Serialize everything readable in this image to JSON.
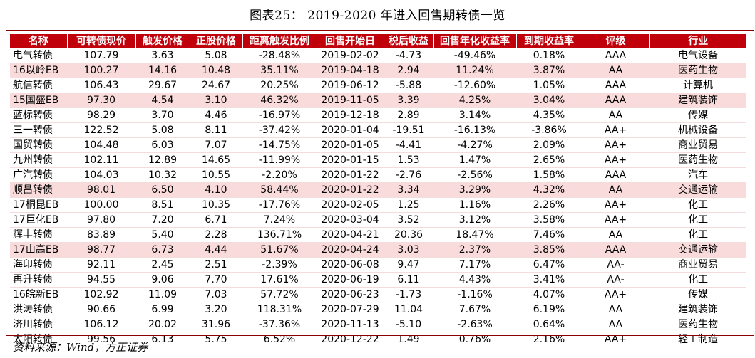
{
  "title": "图表25：  2019-2020 年进入回售期转债一览",
  "source": "资料来源：Wind，方正证券",
  "table": {
    "headers": [
      "名称",
      "可转债现价",
      "触发价格",
      "正股价格",
      "距离触发比例",
      "回售开始日",
      "税后收益",
      "回售年化收益率",
      "到期收益率",
      "评级",
      "行业"
    ],
    "rows": [
      {
        "highlight": false,
        "cells": [
          "电气转债",
          "107.79",
          "3.63",
          "5.08",
          "-28.48%",
          "2019-02-02",
          "-4.73",
          "-49.46%",
          "0.18%",
          "AAA",
          "电气设备"
        ]
      },
      {
        "highlight": true,
        "cells": [
          "16以岭EB",
          "100.27",
          "14.16",
          "10.48",
          "35.11%",
          "2019-04-18",
          "2.94",
          "11.24%",
          "3.87%",
          "AA",
          "医药生物"
        ]
      },
      {
        "highlight": false,
        "cells": [
          "航信转债",
          "106.43",
          "29.67",
          "24.67",
          "20.25%",
          "2019-06-12",
          "-5.88",
          "-12.60%",
          "1.05%",
          "AAA",
          "计算机"
        ]
      },
      {
        "highlight": true,
        "cells": [
          "15国盛EB",
          "97.30",
          "4.54",
          "3.10",
          "46.32%",
          "2019-11-05",
          "3.39",
          "4.25%",
          "3.04%",
          "AAA",
          "建筑装饰"
        ]
      },
      {
        "highlight": false,
        "cells": [
          "蓝标转债",
          "98.29",
          "3.70",
          "4.46",
          "-16.97%",
          "2019-12-18",
          "2.89",
          "3.14%",
          "4.35%",
          "AA",
          "传媒"
        ]
      },
      {
        "highlight": false,
        "cells": [
          "三一转债",
          "122.52",
          "5.08",
          "8.11",
          "-37.42%",
          "2020-01-04",
          "-19.51",
          "-16.13%",
          "-3.86%",
          "AA+",
          "机械设备"
        ]
      },
      {
        "highlight": false,
        "cells": [
          "国贸转债",
          "104.48",
          "6.03",
          "7.07",
          "-14.75%",
          "2020-01-05",
          "-4.41",
          "-4.27%",
          "2.09%",
          "AA+",
          "商业贸易"
        ]
      },
      {
        "highlight": false,
        "cells": [
          "九州转债",
          "102.11",
          "12.89",
          "14.65",
          "-11.99%",
          "2020-01-15",
          "1.53",
          "1.47%",
          "2.65%",
          "AA+",
          "医药生物"
        ]
      },
      {
        "highlight": false,
        "cells": [
          "广汽转债",
          "104.03",
          "10.32",
          "10.55",
          "-2.20%",
          "2020-01-22",
          "-2.76",
          "-2.56%",
          "1.58%",
          "AAA",
          "汽车"
        ]
      },
      {
        "highlight": true,
        "cells": [
          "顺昌转债",
          "98.01",
          "6.50",
          "4.10",
          "58.44%",
          "2020-01-22",
          "3.34",
          "3.29%",
          "4.32%",
          "AA",
          "交通运输"
        ]
      },
      {
        "highlight": false,
        "cells": [
          "17桐昆EB",
          "100.00",
          "8.51",
          "10.35",
          "-17.76%",
          "2020-02-05",
          "1.25",
          "1.16%",
          "2.26%",
          "AA+",
          "化工"
        ]
      },
      {
        "highlight": false,
        "cells": [
          "17巨化EB",
          "97.80",
          "7.20",
          "6.71",
          "7.24%",
          "2020-03-04",
          "3.52",
          "3.12%",
          "3.58%",
          "AA+",
          "化工"
        ]
      },
      {
        "highlight": false,
        "cells": [
          "辉丰转债",
          "83.89",
          "5.40",
          "2.28",
          "136.71%",
          "2020-04-21",
          "20.36",
          "18.47%",
          "7.46%",
          "AA",
          "化工"
        ]
      },
      {
        "highlight": true,
        "cells": [
          "17山高EB",
          "98.77",
          "6.73",
          "4.44",
          "51.67%",
          "2020-04-24",
          "3.03",
          "2.37%",
          "3.85%",
          "AAA",
          "交通运输"
        ]
      },
      {
        "highlight": false,
        "cells": [
          "海印转债",
          "92.11",
          "2.45",
          "2.51",
          "-2.39%",
          "2020-06-08",
          "9.47",
          "7.17%",
          "6.47%",
          "AA-",
          "商业贸易"
        ]
      },
      {
        "highlight": false,
        "cells": [
          "再升转债",
          "94.55",
          "9.06",
          "7.70",
          "17.61%",
          "2020-06-19",
          "6.11",
          "4.43%",
          "3.41%",
          "AA-",
          "化工"
        ]
      },
      {
        "highlight": false,
        "cells": [
          "16皖新EB",
          "102.92",
          "11.09",
          "7.03",
          "57.72%",
          "2020-06-23",
          "-1.73",
          "-1.16%",
          "4.07%",
          "AA+",
          "传媒"
        ]
      },
      {
        "highlight": false,
        "cells": [
          "洪涛转债",
          "90.66",
          "6.99",
          "3.20",
          "118.31%",
          "2020-07-29",
          "11.04",
          "7.67%",
          "6.19%",
          "AA",
          "建筑装饰"
        ]
      },
      {
        "highlight": false,
        "cells": [
          "济川转债",
          "106.12",
          "20.02",
          "31.96",
          "-37.36%",
          "2020-11-13",
          "-5.10",
          "-2.63%",
          "0.64%",
          "AA",
          "医药生物"
        ]
      },
      {
        "highlight": false,
        "cells": [
          "太阳转债",
          "99.56",
          "6.13",
          "5.75",
          "6.52%",
          "2020-12-22",
          "1.49",
          "0.76%",
          "2.16%",
          "AA+",
          "轻工制造"
        ]
      }
    ]
  },
  "colors": {
    "header_bg": "#c0000b",
    "header_text": "#ffffff",
    "highlight_row": "#fadbdb",
    "rule": "#8b0000"
  }
}
